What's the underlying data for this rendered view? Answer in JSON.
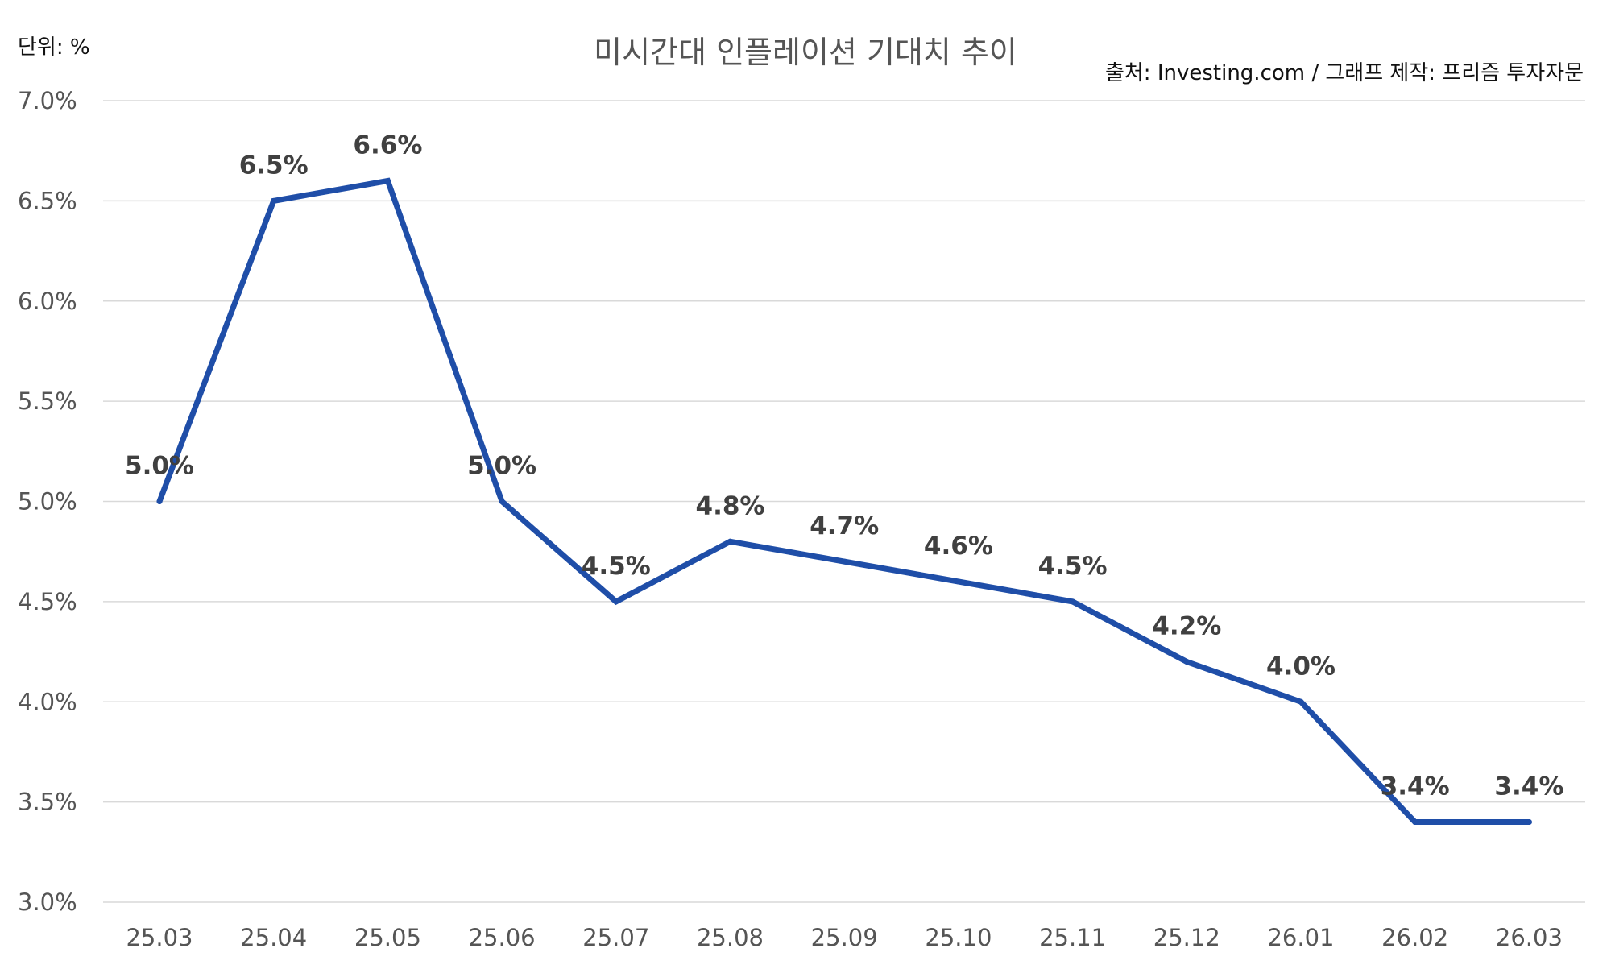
{
  "unit_label": "단위: %",
  "source_label": "출처: Investing.com / 그래프 제작: 프리즘 투자자문",
  "chart_data": {
    "type": "line",
    "title": "미시간대 인플레이션 기대치 추이",
    "xlabel": "",
    "ylabel": "",
    "categories": [
      "25.03",
      "25.04",
      "25.05",
      "25.06",
      "25.07",
      "25.08",
      "25.09",
      "25.10",
      "25.11",
      "25.12",
      "26.01",
      "26.02",
      "26.03"
    ],
    "series": [
      {
        "values": [
          5.0,
          6.5,
          6.6,
          5.0,
          4.5,
          4.8,
          4.7,
          4.6,
          4.5,
          4.2,
          4.0,
          3.4,
          3.4
        ]
      }
    ],
    "data_labels": [
      "5.0%",
      "6.5%",
      "6.6%",
      "5.0%",
      "4.5%",
      "4.8%",
      "4.7%",
      "4.6%",
      "4.5%",
      "4.2%",
      "4.0%",
      "3.4%",
      "3.4%"
    ],
    "ylim": [
      3.0,
      7.0
    ],
    "yticks": [
      7.0,
      6.5,
      6.0,
      5.5,
      5.0,
      4.5,
      4.0,
      3.5,
      3.0
    ],
    "ytick_labels": [
      "7.0%",
      "6.5%",
      "6.0%",
      "5.5%",
      "5.0%",
      "4.5%",
      "4.0%",
      "3.5%",
      "3.0%"
    ],
    "grid": true,
    "legend": "none",
    "colors": {
      "line": "#1f4ea8",
      "grid": "#d9d9d9",
      "label": "#404040",
      "axis_text": "#555555"
    }
  }
}
